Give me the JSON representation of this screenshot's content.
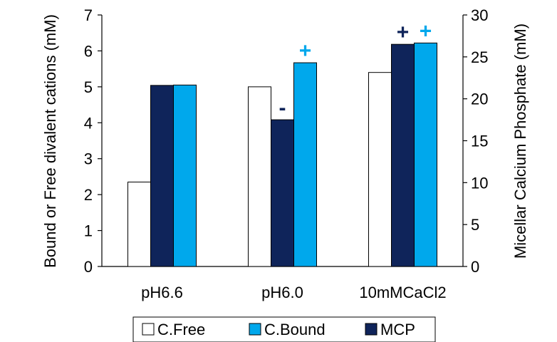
{
  "chart_data": {
    "type": "bar",
    "categories": [
      "pH6.6",
      "pH6.0",
      "10mMCaCl2"
    ],
    "series": [
      {
        "name": "C.Free",
        "axis": "left",
        "values": [
          2.35,
          5.0,
          5.4
        ],
        "color": "#ffffff"
      },
      {
        "name": "MCP",
        "axis": "right",
        "values": [
          21.6,
          17.5,
          26.5
        ],
        "color": "#0f245a"
      },
      {
        "name": "C.Bound",
        "axis": "left",
        "values": [
          5.05,
          5.67,
          6.22
        ],
        "color": "#00a8ec"
      }
    ],
    "ylabel": "Bound or Free divalent cations (mM)",
    "y2label": "Micellar Calcium Phosphate (mM)",
    "ylim": [
      0,
      7
    ],
    "y2lim": [
      0,
      30
    ],
    "yticks": [
      "0",
      "1",
      "2",
      "3",
      "4",
      "5",
      "6",
      "7"
    ],
    "y2ticks": [
      "0",
      "5",
      "10",
      "15",
      "20",
      "25",
      "30"
    ],
    "grid": false,
    "legend_position": "bottom",
    "legend_order": [
      "C.Free",
      "C.Bound",
      "MCP"
    ],
    "annotations": [
      {
        "text": "-",
        "category": "pH6.0",
        "series": "MCP",
        "color": "#0f245a"
      },
      {
        "text": "+",
        "category": "pH6.0",
        "series": "C.Bound",
        "color": "#00a8ec"
      },
      {
        "text": "+",
        "category": "10mMCaCl2",
        "series": "MCP",
        "color": "#0f245a"
      },
      {
        "text": "+",
        "category": "10mMCaCl2",
        "series": "C.Bound",
        "color": "#00a8ec"
      }
    ]
  }
}
